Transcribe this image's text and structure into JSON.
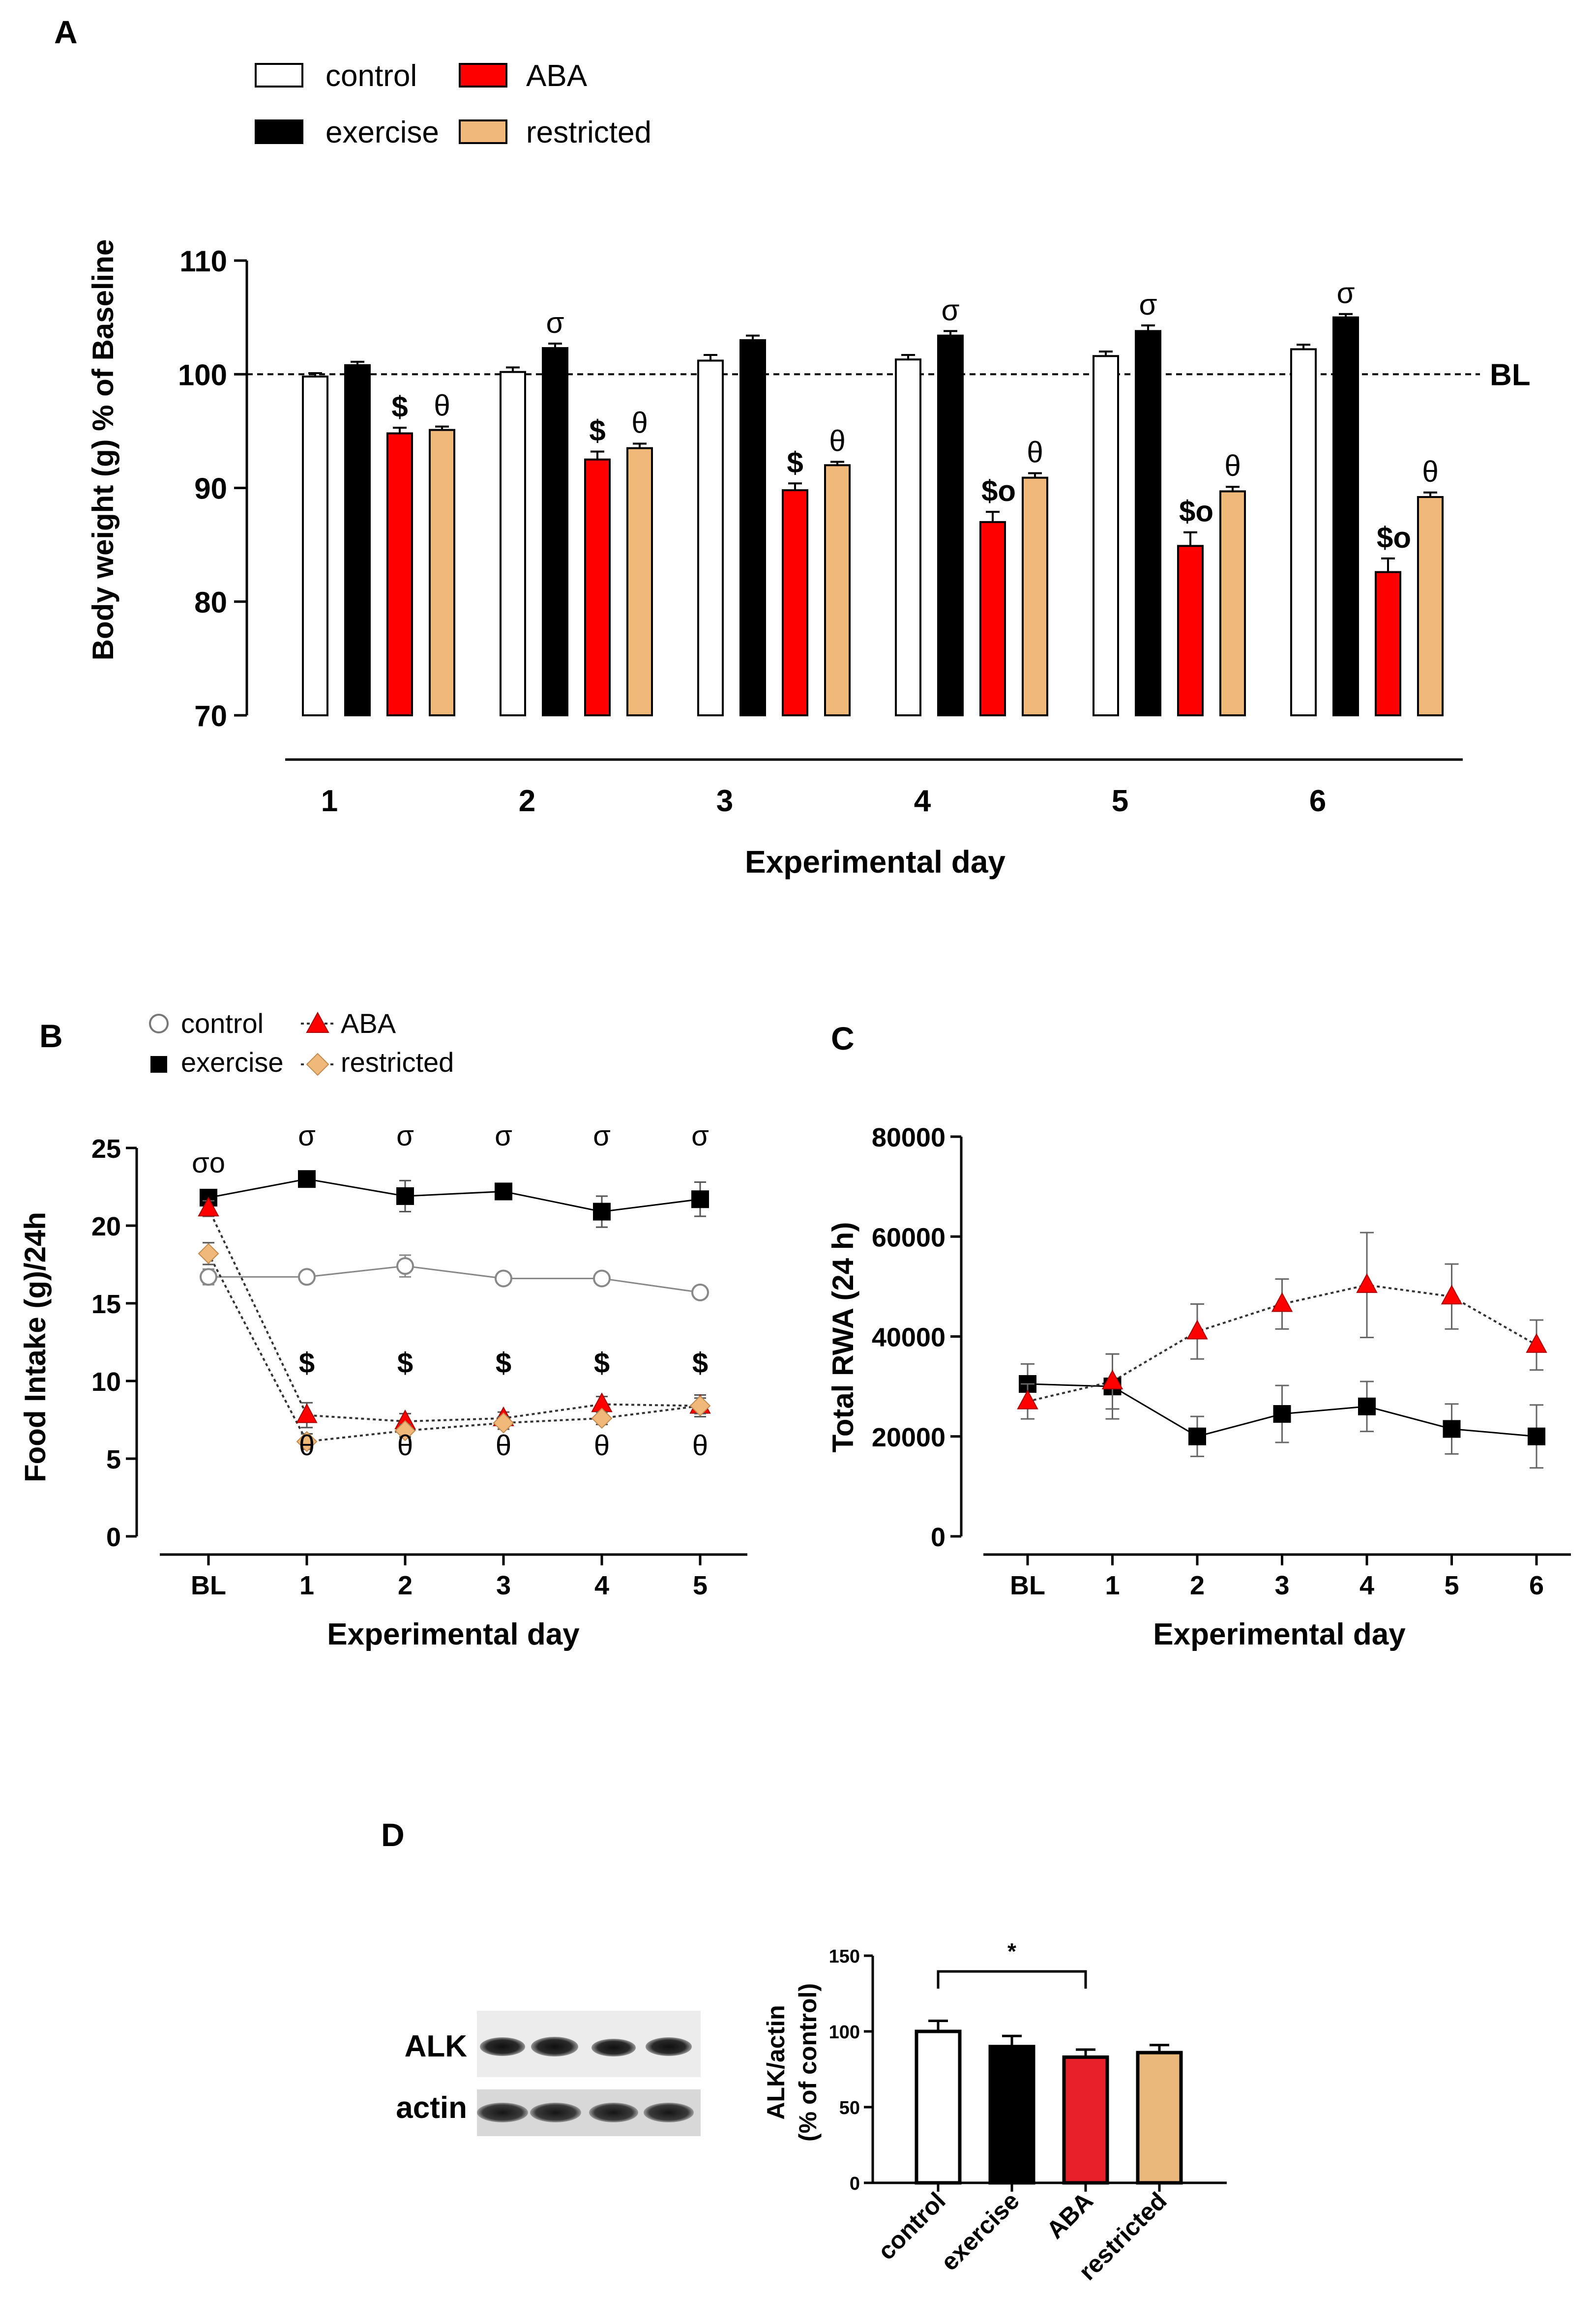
{
  "panel_labels": {
    "a": "A",
    "b": "B",
    "c": "C",
    "d": "D"
  },
  "colors": {
    "control": "#ffffff",
    "exercise": "#000000",
    "aba": "#ff0000",
    "restricted": "#f0b97a",
    "aba_d": "#e8202a",
    "restricted_d": "#e9b87a",
    "grey_line": "#888888"
  },
  "chart_data": [
    {
      "id": "A",
      "type": "bar",
      "xlabel": "Experimental day",
      "ylabel": "Body weight (g) % of Baseline",
      "ylim": [
        70,
        110
      ],
      "yticks": [
        "70",
        "80",
        "90",
        "100",
        "110"
      ],
      "categories": [
        "1",
        "2",
        "3",
        "4",
        "5",
        "6"
      ],
      "baseline_label": "BL",
      "baseline_value": 100,
      "series": [
        {
          "name": "control",
          "values": [
            99.8,
            100.2,
            101.2,
            101.3,
            101.6,
            102.2
          ],
          "errors": [
            0.3,
            0.4,
            0.5,
            0.4,
            0.4,
            0.4
          ]
        },
        {
          "name": "exercise",
          "values": [
            100.8,
            102.3,
            103.0,
            103.4,
            103.8,
            105.0
          ],
          "errors": [
            0.3,
            0.4,
            0.4,
            0.4,
            0.5,
            0.3
          ]
        },
        {
          "name": "ABA",
          "values": [
            94.8,
            92.5,
            89.8,
            87.0,
            84.9,
            82.6
          ],
          "errors": [
            0.5,
            0.7,
            0.6,
            0.9,
            1.2,
            1.2
          ]
        },
        {
          "name": "restricted",
          "values": [
            95.1,
            93.5,
            92.0,
            90.9,
            89.7,
            89.2
          ],
          "errors": [
            0.3,
            0.4,
            0.3,
            0.4,
            0.4,
            0.4
          ]
        }
      ],
      "annotations": {
        "exercise": [
          "",
          "σ",
          "",
          "σ",
          "σ",
          "σ"
        ],
        "ABA": [
          "$",
          "$",
          "$",
          "$o",
          "$o",
          "$o"
        ],
        "restricted": [
          "θ",
          "θ",
          "θ",
          "θ",
          "θ",
          "θ"
        ]
      },
      "legend": [
        "control",
        "ABA",
        "exercise",
        "restricted"
      ]
    },
    {
      "id": "B",
      "type": "line",
      "xlabel": "Experimental day",
      "ylabel": "Food Intake (g)/24h",
      "ylim": [
        0,
        25
      ],
      "yticks": [
        "0",
        "5",
        "10",
        "15",
        "20",
        "25"
      ],
      "categories": [
        "BL",
        "1",
        "2",
        "3",
        "4",
        "5"
      ],
      "series": [
        {
          "name": "control",
          "values": [
            16.7,
            16.7,
            17.4,
            16.6,
            16.6,
            15.7
          ],
          "errors": [
            0.5,
            0.3,
            0.7,
            0.3,
            0.3,
            0.3
          ]
        },
        {
          "name": "exercise",
          "values": [
            21.8,
            23.0,
            21.9,
            22.2,
            20.9,
            21.7
          ],
          "errors": [
            0.5,
            0.3,
            1.0,
            0.4,
            1.0,
            1.1
          ]
        },
        {
          "name": "ABA",
          "values": [
            21.1,
            7.8,
            7.4,
            7.6,
            8.5,
            8.4
          ],
          "errors": [
            0.5,
            0.8,
            0.5,
            0.4,
            0.5,
            0.7
          ]
        },
        {
          "name": "restricted",
          "values": [
            18.2,
            6.1,
            6.8,
            7.3,
            7.6,
            8.4
          ],
          "errors": [
            0.7,
            0.5,
            0.4,
            0.4,
            0.4,
            0.5
          ]
        }
      ],
      "annotations": {
        "top": [
          "σo",
          "σ",
          "σ",
          "σ",
          "σ",
          "σ"
        ],
        "dollar": [
          "",
          "$",
          "$",
          "$",
          "$",
          "$"
        ],
        "theta": [
          "",
          "θ",
          "θ",
          "θ",
          "θ",
          "θ"
        ]
      },
      "legend": [
        "control",
        "ABA",
        "exercise",
        "restricted"
      ]
    },
    {
      "id": "C",
      "type": "line",
      "xlabel": "Experimental day",
      "ylabel": "Total RWA (24 h)",
      "ylim": [
        0,
        80000
      ],
      "yticks": [
        "0",
        "20000",
        "40000",
        "60000",
        "80000"
      ],
      "categories": [
        "BL",
        "1",
        "2",
        "3",
        "4",
        "5",
        "6"
      ],
      "series": [
        {
          "name": "exercise",
          "values": [
            30500,
            30000,
            20000,
            24500,
            26000,
            21500,
            20000
          ],
          "errors": [
            4000,
            6500,
            4000,
            5700,
            5000,
            5000,
            6300
          ]
        },
        {
          "name": "ABA",
          "values": [
            27000,
            31000,
            41000,
            46500,
            50300,
            48000,
            38300
          ],
          "errors": [
            3500,
            5500,
            5500,
            5000,
            10500,
            6500,
            5000
          ]
        }
      ]
    },
    {
      "id": "D",
      "type": "bar",
      "ylabel": "ALK/actin (% of control)",
      "ylabel_lines": [
        "ALK/actin",
        "(% of control)"
      ],
      "ylim": [
        0,
        150
      ],
      "yticks": [
        "0",
        "50",
        "100",
        "150"
      ],
      "categories": [
        "control",
        "exercise",
        "ABA",
        "restricted"
      ],
      "values": [
        100,
        90,
        83,
        86
      ],
      "errors": [
        7,
        7,
        5,
        5
      ],
      "significance": "*",
      "blot_labels": [
        "ALK",
        "actin"
      ]
    }
  ]
}
